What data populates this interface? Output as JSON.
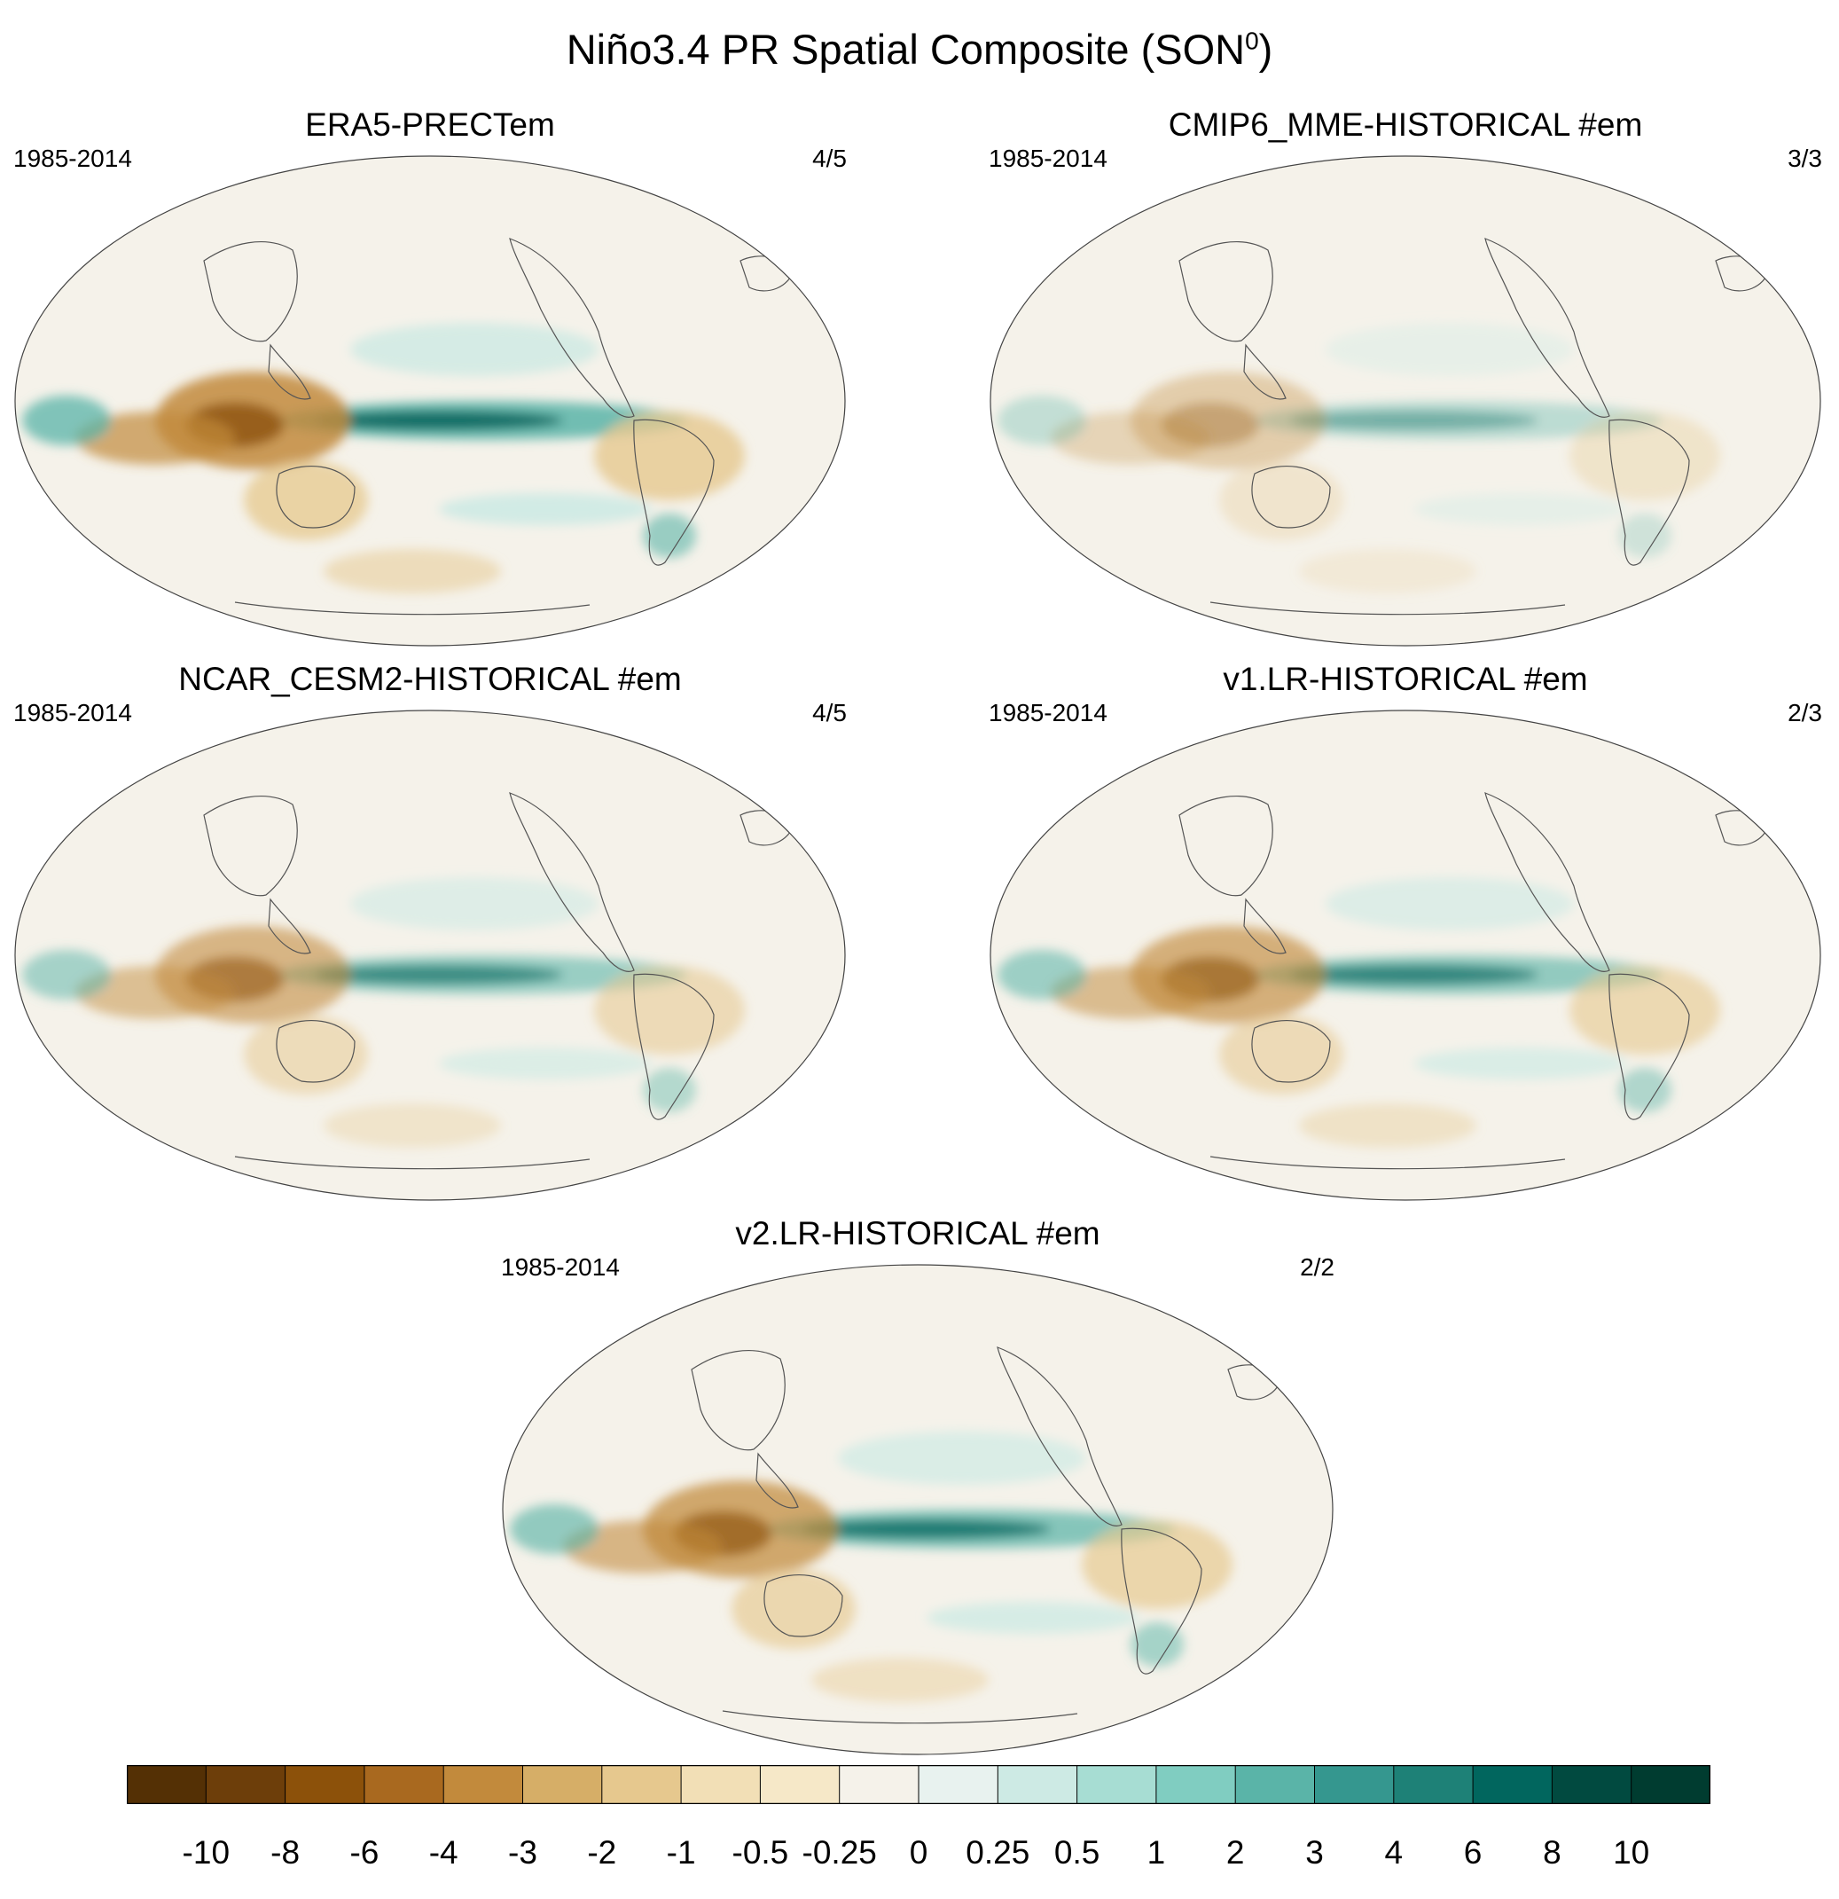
{
  "title": {
    "text": "Niño3.4 PR Spatial Composite (SON",
    "sup": "0",
    "close": ")"
  },
  "panels": [
    {
      "title": "ERA5-PRECTem",
      "period": "1985-2014",
      "members": "4/5",
      "strength": 1.0
    },
    {
      "title": "CMIP6_MME-HISTORICAL  #em",
      "period": "1985-2014",
      "members": "3/3",
      "strength": 0.42
    },
    {
      "title": "NCAR_CESM2-HISTORICAL  #em",
      "period": "1985-2014",
      "members": "4/5",
      "strength": 0.7
    },
    {
      "title": "v1.LR-HISTORICAL  #em",
      "period": "1985-2014",
      "members": "2/3",
      "strength": 0.75
    },
    {
      "title": "v2.LR-HISTORICAL  #em",
      "period": "1985-2014",
      "members": "2/2",
      "strength": 0.85
    }
  ],
  "colorbar": {
    "labels": [
      "-10",
      "-8",
      "-6",
      "-4",
      "-3",
      "-2",
      "-1",
      "-0.5",
      "-0.25",
      "0",
      "0.25",
      "0.5",
      "1",
      "2",
      "3",
      "4",
      "6",
      "8",
      "10"
    ],
    "colors": [
      "#543005",
      "#6d3e0a",
      "#8c510a",
      "#a9691f",
      "#c28a3c",
      "#d6ae67",
      "#e6c88e",
      "#f2dfb6",
      "#f6e8c8",
      "#f5f2ea",
      "#e8f2ef",
      "#cdeae4",
      "#a7ddd3",
      "#80cdc1",
      "#5ab4a8",
      "#35978f",
      "#1e8177",
      "#01665e",
      "#014a40",
      "#003c30"
    ]
  },
  "palette_named": {
    "brown_strong": "#8c510a",
    "brown_mid": "#c28a3c",
    "brown_light": "#e6c88e",
    "neutral": "#f5f2ea",
    "teal_light": "#cdeae4",
    "teal_mid": "#5ab4a8",
    "teal_strong": "#01665e",
    "coast": "#555555"
  }
}
